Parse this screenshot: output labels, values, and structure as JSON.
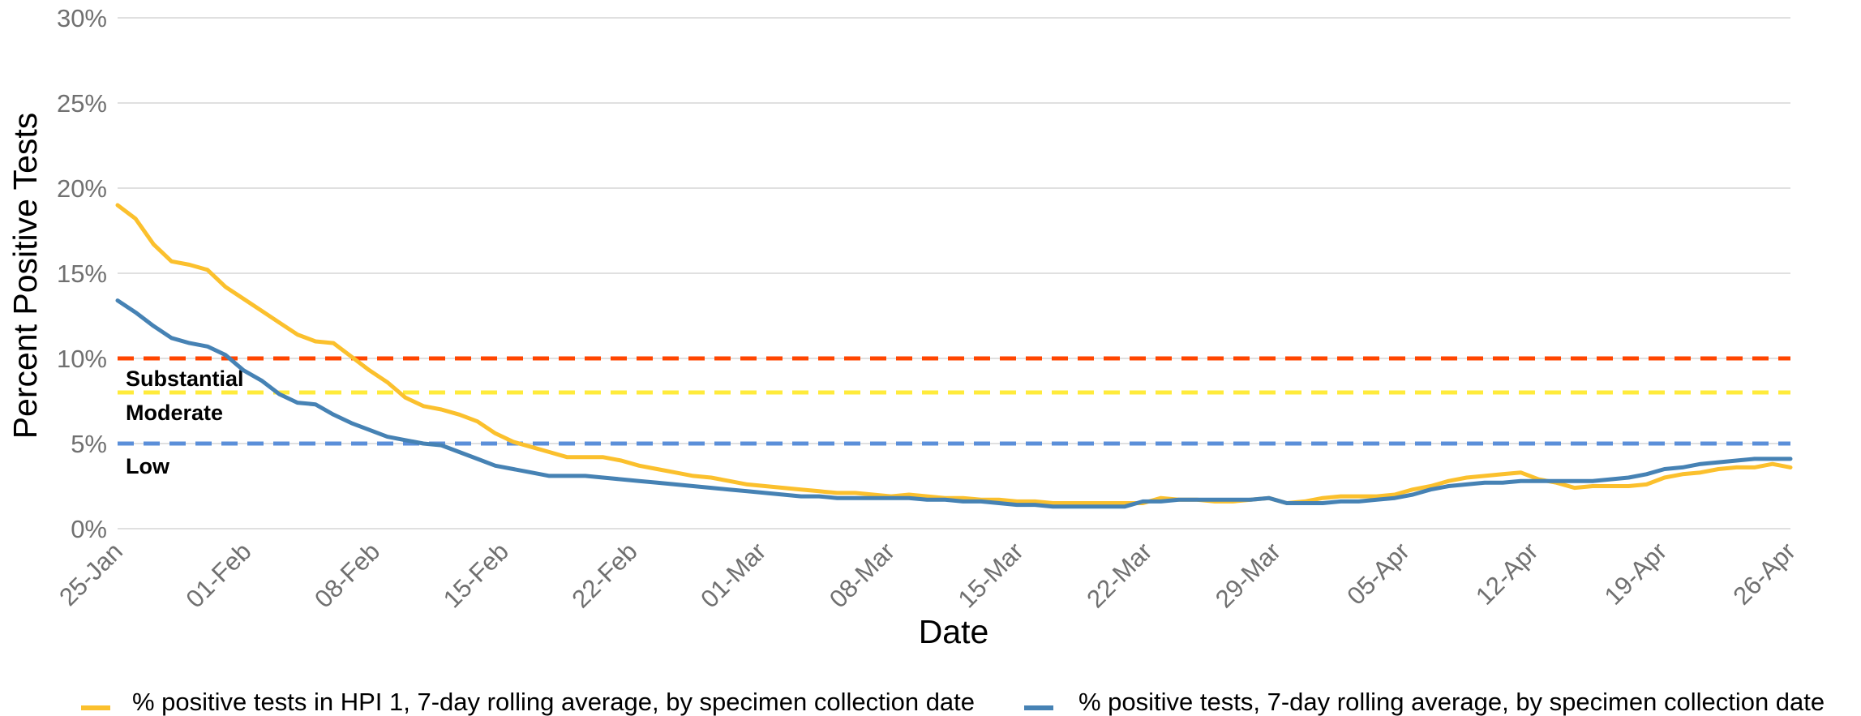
{
  "chart_data": {
    "type": "line",
    "title": "",
    "xlabel": "Date",
    "ylabel": "Percent Positive Tests",
    "ylim": [
      0,
      30
    ],
    "yticks": [
      "0%",
      "5%",
      "10%",
      "15%",
      "20%",
      "25%",
      "30%"
    ],
    "xticks": [
      "25-Jan",
      "01-Feb",
      "08-Feb",
      "15-Feb",
      "22-Feb",
      "01-Mar",
      "08-Mar",
      "15-Mar",
      "22-Mar",
      "29-Mar",
      "05-Apr",
      "12-Apr",
      "19-Apr",
      "26-Apr"
    ],
    "grid": "horizontal",
    "legend_position": "bottom",
    "x_start": "25-Jan",
    "x_interval_days": 7,
    "series": [
      {
        "name": "% positive tests in HPI 1, 7-day rolling average, by specimen collection date",
        "color": "#FBC02D",
        "values": [
          19.0,
          18.2,
          16.7,
          15.7,
          15.5,
          15.2,
          14.2,
          13.5,
          12.8,
          12.1,
          11.4,
          11.0,
          10.9,
          10.1,
          9.3,
          8.6,
          7.7,
          7.2,
          7.0,
          6.7,
          6.3,
          5.6,
          5.1,
          4.8,
          4.5,
          4.2,
          4.2,
          4.2,
          4.0,
          3.7,
          3.5,
          3.3,
          3.1,
          3.0,
          2.8,
          2.6,
          2.5,
          2.4,
          2.3,
          2.2,
          2.1,
          2.1,
          2.0,
          1.9,
          2.0,
          1.9,
          1.8,
          1.8,
          1.7,
          1.7,
          1.6,
          1.6,
          1.5,
          1.5,
          1.5,
          1.5,
          1.5,
          1.5,
          1.8,
          1.7,
          1.7,
          1.6,
          1.6,
          1.7,
          1.8,
          1.5,
          1.6,
          1.8,
          1.9,
          1.9,
          1.9,
          2.0,
          2.3,
          2.5,
          2.8,
          3.0,
          3.1,
          3.2,
          3.3,
          2.9,
          2.7,
          2.4,
          2.5,
          2.5,
          2.5,
          2.6,
          3.0,
          3.2,
          3.3,
          3.5,
          3.6,
          3.6,
          3.8,
          3.6
        ]
      },
      {
        "name": "% positive tests, 7-day rolling average, by specimen collection date",
        "color": "#4682B4",
        "values": [
          13.4,
          12.7,
          11.9,
          11.2,
          10.9,
          10.7,
          10.2,
          9.3,
          8.7,
          7.9,
          7.4,
          7.3,
          6.7,
          6.2,
          5.8,
          5.4,
          5.2,
          5.0,
          4.9,
          4.5,
          4.1,
          3.7,
          3.5,
          3.3,
          3.1,
          3.1,
          3.1,
          3.0,
          2.9,
          2.8,
          2.7,
          2.6,
          2.5,
          2.4,
          2.3,
          2.2,
          2.1,
          2.0,
          1.9,
          1.9,
          1.8,
          1.8,
          1.8,
          1.8,
          1.8,
          1.7,
          1.7,
          1.6,
          1.6,
          1.5,
          1.4,
          1.4,
          1.3,
          1.3,
          1.3,
          1.3,
          1.3,
          1.6,
          1.6,
          1.7,
          1.7,
          1.7,
          1.7,
          1.7,
          1.8,
          1.5,
          1.5,
          1.5,
          1.6,
          1.6,
          1.7,
          1.8,
          2.0,
          2.3,
          2.5,
          2.6,
          2.7,
          2.7,
          2.8,
          2.8,
          2.8,
          2.8,
          2.8,
          2.9,
          3.0,
          3.2,
          3.5,
          3.6,
          3.8,
          3.9,
          4.0,
          4.1,
          4.1,
          4.1
        ]
      }
    ],
    "thresholds": [
      {
        "label": "",
        "value": 10,
        "color": "#FF4500"
      },
      {
        "label": "Substantial",
        "value": 8,
        "color": "#FFEB3B"
      },
      {
        "label": "Moderate",
        "value": 8,
        "color": "#FFEB3B"
      },
      {
        "label": "Low",
        "value": 5,
        "color": "#5B8FD9"
      }
    ]
  }
}
